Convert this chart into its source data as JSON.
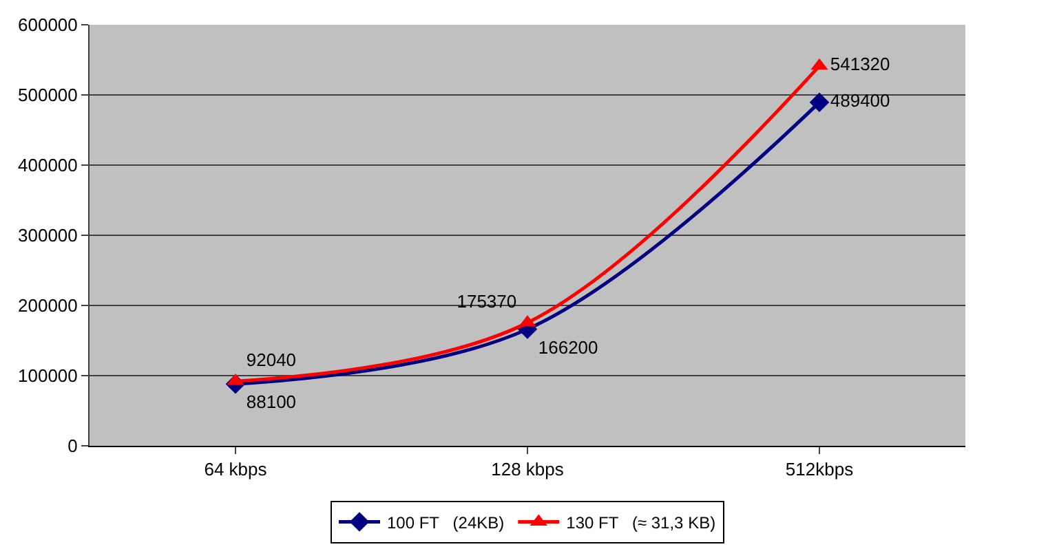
{
  "chart_data": {
    "type": "line",
    "categories": [
      "64 kbps",
      "128 kbps",
      "512kbps"
    ],
    "series": [
      {
        "name": "100 FT   (24KB)",
        "color": "#000080",
        "values": [
          88100,
          166200,
          489400
        ],
        "marker": "diamond"
      },
      {
        "name": "130 FT   (≈ 31,3 KB)",
        "color": "#ff0000",
        "values": [
          92040,
          175370,
          541320
        ],
        "marker": "triangle"
      }
    ],
    "ylim": [
      0,
      600000
    ],
    "yticks": [
      0,
      100000,
      200000,
      300000,
      400000,
      500000,
      600000
    ],
    "grid": "y",
    "legend": "bottom",
    "data_labels": true
  }
}
